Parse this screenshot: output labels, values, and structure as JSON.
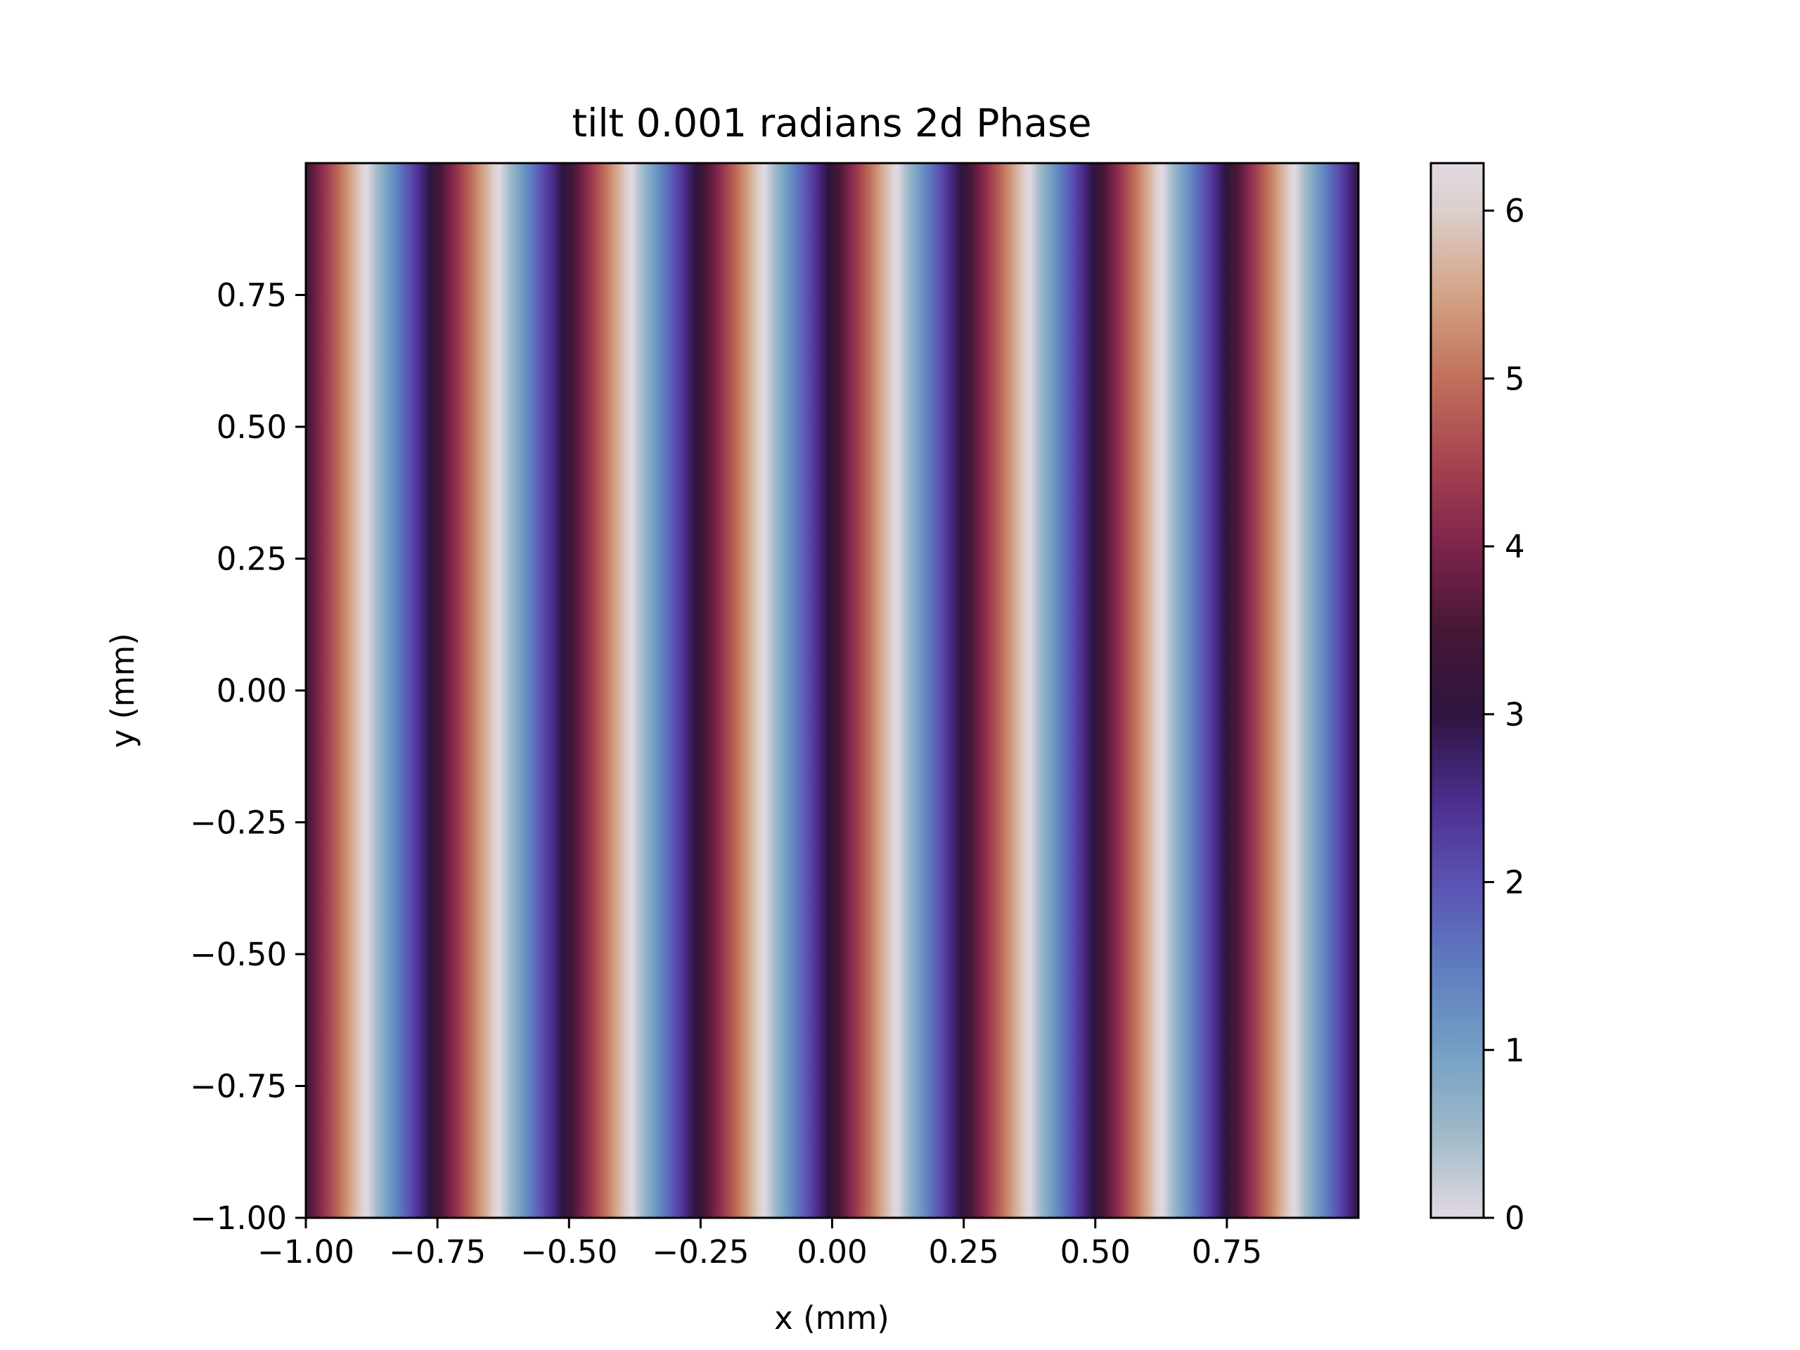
{
  "chart_data": {
    "type": "heatmap",
    "title": "tilt 0.001 radians 2d Phase",
    "xlabel": "x (mm)",
    "ylabel": "y (mm)",
    "xlim": [
      -1.0,
      1.0
    ],
    "ylim": [
      -1.0,
      1.0
    ],
    "xticks": [
      "−1.00",
      "−0.75",
      "−0.50",
      "−0.25",
      "0.00",
      "0.25",
      "0.50",
      "0.75"
    ],
    "xtick_values": [
      -1.0,
      -0.75,
      -0.5,
      -0.25,
      0.0,
      0.25,
      0.5,
      0.75
    ],
    "yticks": [
      "−1.00",
      "−0.75",
      "−0.50",
      "−0.25",
      "0.00",
      "0.25",
      "0.50",
      "0.75"
    ],
    "ytick_values": [
      -1.0,
      -0.75,
      -0.5,
      -0.25,
      0.0,
      0.25,
      0.5,
      0.75
    ],
    "colorbar": {
      "range": [
        0,
        6.283
      ],
      "ticks": [
        "0",
        "1",
        "2",
        "3",
        "4",
        "5",
        "6"
      ],
      "tick_values": [
        0,
        1,
        2,
        3,
        4,
        5,
        6
      ],
      "colormap": "twilight",
      "colormap_stops": [
        {
          "value": 0.0,
          "color": "#e2d9e2"
        },
        {
          "value": 0.5,
          "color": "#9fbac8"
        },
        {
          "value": 1.0,
          "color": "#749fc5"
        },
        {
          "value": 1.5,
          "color": "#5e7cc0"
        },
        {
          "value": 2.0,
          "color": "#5b52b3"
        },
        {
          "value": 2.5,
          "color": "#4c2c8c"
        },
        {
          "value": 3.0,
          "color": "#2d1540"
        },
        {
          "value": 3.5,
          "color": "#461735"
        },
        {
          "value": 4.0,
          "color": "#7e234c"
        },
        {
          "value": 4.5,
          "color": "#a6434f"
        },
        {
          "value": 5.0,
          "color": "#c1705b"
        },
        {
          "value": 5.5,
          "color": "#d4a386"
        },
        {
          "value": 6.0,
          "color": "#dccfcd"
        },
        {
          "value": 6.283,
          "color": "#e2d9e2"
        }
      ]
    },
    "phase_model": {
      "description_of_field": "phase(x) = (phase_at_x0 + cycles_per_mm * 2π * x) mod 2π, constant along y",
      "cycles_per_mm": 3.97,
      "phase_at_x0": 3.2
    }
  }
}
